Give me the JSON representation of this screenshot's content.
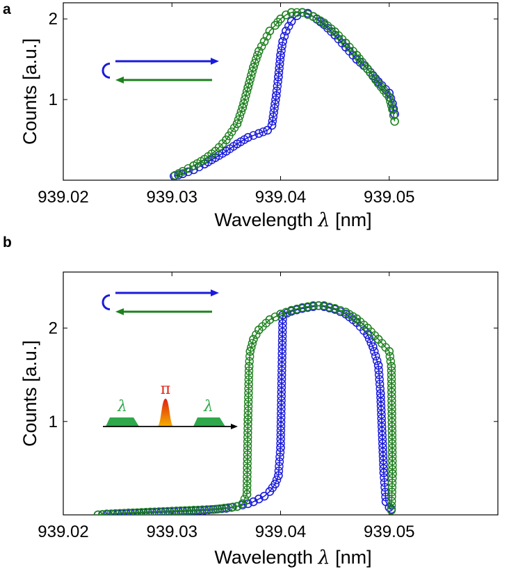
{
  "colors": {
    "sweep_up": "#1a1adc",
    "sweep_down": "#1e801e",
    "pulse_peak": "#e02010",
    "pulse_base": "#f5b000",
    "window": "#2ea84a"
  },
  "chart_data": [
    {
      "panel_label": "a",
      "type": "line",
      "marker": "open-circle",
      "xlabel_text": "Wavelength",
      "xlabel_symbol": "λ",
      "xlabel_unit": "[nm]",
      "ylabel": "Counts [a.u.]",
      "xlim": [
        939.02,
        939.06
      ],
      "ylim": [
        0,
        2.2
      ],
      "xticks": [
        939.02,
        939.03,
        939.04,
        939.05
      ],
      "xtick_labels": [
        "939.02",
        "939.03",
        "939.04",
        "939.05"
      ],
      "yticks": [
        1,
        2
      ],
      "ytick_labels": [
        "1",
        "2"
      ],
      "inset_icon": "sweep-direction-arrows-icon",
      "series": [
        {
          "color_key": "sweep_up",
          "arrow": "right",
          "points": [
            [
              939.0302,
              0.05
            ],
            [
              939.031,
              0.08
            ],
            [
              939.032,
              0.13
            ],
            [
              939.033,
              0.2
            ],
            [
              939.034,
              0.28
            ],
            [
              939.035,
              0.36
            ],
            [
              939.036,
              0.45
            ],
            [
              939.037,
              0.53
            ],
            [
              939.038,
              0.58
            ],
            [
              939.0388,
              0.62
            ],
            [
              939.0392,
              0.68
            ],
            [
              939.0396,
              1.05
            ],
            [
              939.0398,
              1.28
            ],
            [
              939.04,
              1.55
            ],
            [
              939.0402,
              1.72
            ],
            [
              939.0405,
              1.85
            ],
            [
              939.041,
              1.97
            ],
            [
              939.0415,
              2.04
            ],
            [
              939.042,
              2.08
            ],
            [
              939.0425,
              2.07
            ],
            [
              939.043,
              2.03
            ],
            [
              939.044,
              1.93
            ],
            [
              939.045,
              1.8
            ],
            [
              939.046,
              1.65
            ],
            [
              939.047,
              1.5
            ],
            [
              939.048,
              1.38
            ],
            [
              939.049,
              1.22
            ],
            [
              939.05,
              1.08
            ],
            [
              939.0503,
              0.95
            ],
            [
              939.0505,
              0.82
            ]
          ]
        },
        {
          "color_key": "sweep_down",
          "arrow": "left",
          "points": [
            [
              939.0505,
              0.73
            ],
            [
              939.0503,
              0.88
            ],
            [
              939.05,
              1.03
            ],
            [
              939.049,
              1.2
            ],
            [
              939.048,
              1.38
            ],
            [
              939.047,
              1.55
            ],
            [
              939.046,
              1.7
            ],
            [
              939.045,
              1.84
            ],
            [
              939.044,
              1.95
            ],
            [
              939.043,
              2.03
            ],
            [
              939.042,
              2.08
            ],
            [
              939.041,
              2.08
            ],
            [
              939.0405,
              2.05
            ],
            [
              939.04,
              2.0
            ],
            [
              939.0395,
              1.92
            ],
            [
              939.039,
              1.85
            ],
            [
              939.0385,
              1.72
            ],
            [
              939.038,
              1.6
            ],
            [
              939.0375,
              1.4
            ],
            [
              939.037,
              1.15
            ],
            [
              939.0365,
              0.9
            ],
            [
              939.036,
              0.7
            ],
            [
              939.035,
              0.5
            ],
            [
              939.034,
              0.36
            ],
            [
              939.033,
              0.26
            ],
            [
              939.032,
              0.18
            ],
            [
              939.031,
              0.11
            ],
            [
              939.0303,
              0.06
            ]
          ]
        }
      ]
    },
    {
      "panel_label": "b",
      "type": "line",
      "marker": "open-circle",
      "xlabel_text": "Wavelength",
      "xlabel_symbol": "λ",
      "xlabel_unit": "[nm]",
      "ylabel": "Counts [a.u.]",
      "xlim": [
        939.02,
        939.06
      ],
      "ylim": [
        0,
        2.6
      ],
      "xticks": [
        939.02,
        939.03,
        939.04,
        939.05
      ],
      "xtick_labels": [
        "939.02",
        "939.03",
        "939.04",
        "939.05"
      ],
      "yticks": [
        1,
        2
      ],
      "ytick_labels": [
        "1",
        "2"
      ],
      "inset_icon": "sweep-direction-arrows-icon",
      "pulse_inset": {
        "window_label": "λ",
        "peak_label": "π"
      },
      "series": [
        {
          "color_key": "sweep_up",
          "arrow": "right",
          "points": [
            [
              939.0232,
              0.0
            ],
            [
              939.025,
              0.01
            ],
            [
              939.027,
              0.02
            ],
            [
              939.029,
              0.03
            ],
            [
              939.031,
              0.04
            ],
            [
              939.033,
              0.05
            ],
            [
              939.035,
              0.07
            ],
            [
              939.036,
              0.09
            ],
            [
              939.037,
              0.12
            ],
            [
              939.0375,
              0.14
            ],
            [
              939.038,
              0.17
            ],
            [
              939.0385,
              0.2
            ],
            [
              939.039,
              0.25
            ],
            [
              939.0395,
              0.33
            ],
            [
              939.0398,
              0.42
            ],
            [
              939.04,
              0.72
            ],
            [
              939.0402,
              2.14
            ],
            [
              939.041,
              2.18
            ],
            [
              939.042,
              2.21
            ],
            [
              939.043,
              2.23
            ],
            [
              939.0435,
              2.24
            ],
            [
              939.044,
              2.23
            ],
            [
              939.045,
              2.2
            ],
            [
              939.046,
              2.15
            ],
            [
              939.047,
              2.06
            ],
            [
              939.048,
              1.93
            ],
            [
              939.0485,
              1.8
            ],
            [
              939.049,
              1.6
            ],
            [
              939.0492,
              1.3
            ],
            [
              939.0495,
              0.45
            ],
            [
              939.0497,
              0.14
            ],
            [
              939.05,
              0.08
            ],
            [
              939.0502,
              0.06
            ]
          ]
        },
        {
          "color_key": "sweep_down",
          "arrow": "left",
          "points": [
            [
              939.0502,
              0.05
            ],
            [
              939.0503,
              0.44
            ],
            [
              939.0502,
              1.59
            ],
            [
              939.05,
              1.75
            ],
            [
              939.049,
              1.88
            ],
            [
              939.048,
              2.0
            ],
            [
              939.047,
              2.1
            ],
            [
              939.046,
              2.17
            ],
            [
              939.045,
              2.21
            ],
            [
              939.044,
              2.24
            ],
            [
              939.043,
              2.24
            ],
            [
              939.042,
              2.22
            ],
            [
              939.041,
              2.19
            ],
            [
              939.04,
              2.15
            ],
            [
              939.039,
              2.09
            ],
            [
              939.038,
              1.98
            ],
            [
              939.0375,
              1.88
            ],
            [
              939.0372,
              1.75
            ],
            [
              939.0371,
              1.59
            ],
            [
              939.037,
              1.02
            ],
            [
              939.0369,
              0.22
            ],
            [
              939.0365,
              0.12
            ],
            [
              939.036,
              0.09
            ],
            [
              939.034,
              0.06
            ],
            [
              939.032,
              0.05
            ],
            [
              939.03,
              0.04
            ],
            [
              939.028,
              0.03
            ],
            [
              939.026,
              0.02
            ],
            [
              939.024,
              0.01
            ],
            [
              939.0232,
              0.0
            ]
          ]
        }
      ]
    }
  ]
}
